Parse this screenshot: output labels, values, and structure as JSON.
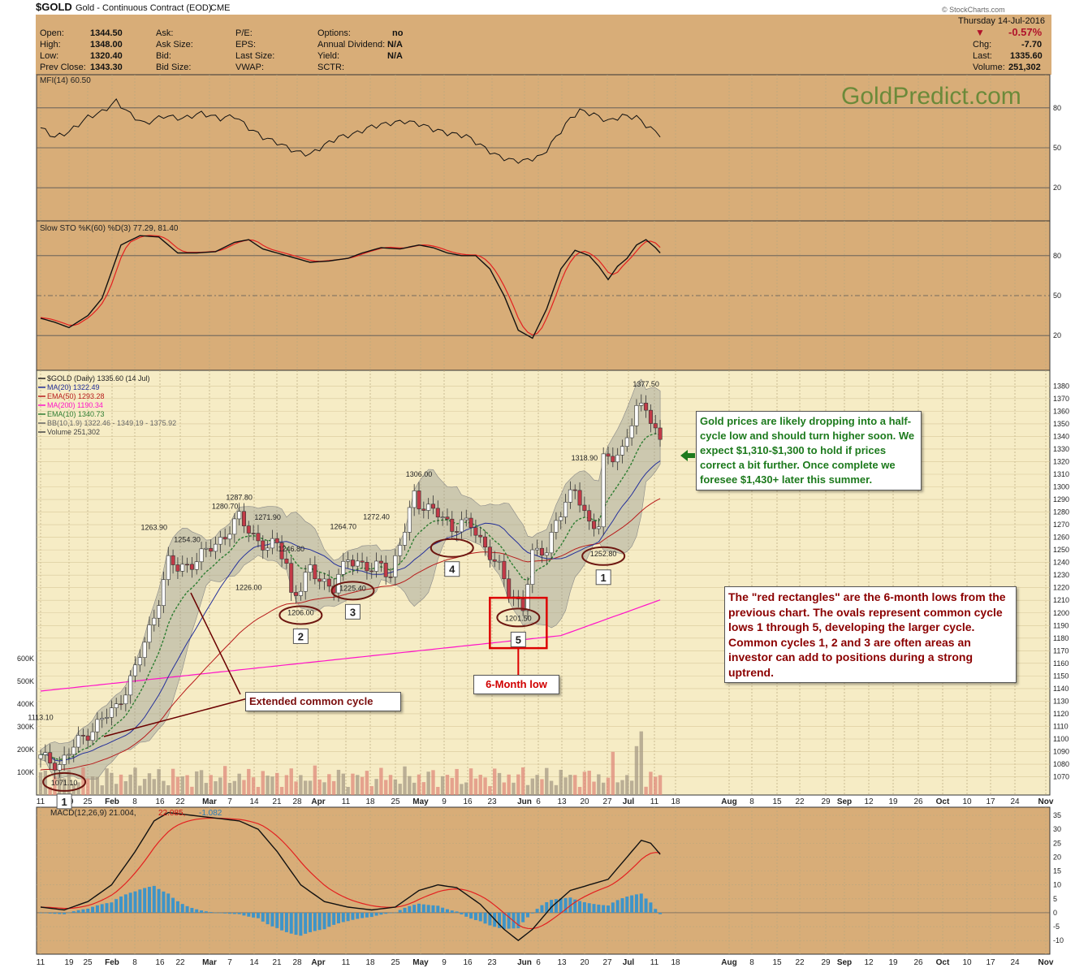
{
  "header": {
    "symbol": "$GOLD",
    "name": "Gold - Continuous Contract (EOD)",
    "exchange": "CME",
    "date": "Thursday  14-Jul-2016",
    "pct_change": "-0.57%",
    "chg_label": "Chg:",
    "chg": "-7.70",
    "last_label": "Last:",
    "last": "1335.60",
    "volume_label": "Volume:",
    "volume": "251,302",
    "stats": [
      {
        "label": "Open:",
        "value": "1344.50"
      },
      {
        "label": "High:",
        "value": "1348.00"
      },
      {
        "label": "Low:",
        "value": "1320.40"
      },
      {
        "label": "Prev Close:",
        "value": "1343.30"
      }
    ],
    "stats2": [
      "Ask:",
      "Ask Size:",
      "Bid:",
      "Bid Size:"
    ],
    "stats3": [
      "P/E:",
      "EPS:",
      "Last Size:",
      "VWAP:"
    ],
    "stats4": [
      {
        "label": "Options:",
        "value": "no"
      },
      {
        "label": "Annual Dividend:",
        "value": "N/A"
      },
      {
        "label": "Yield:",
        "value": "N/A"
      },
      {
        "label": "SCTR:",
        "value": ""
      }
    ],
    "credit": "© StockCharts.com"
  },
  "watermark": "GoldPredict.com",
  "colors": {
    "panel_bg": "#f6ecc5",
    "outer_bg": "#d8ad78",
    "price_up": "#ffffff",
    "price_down": "#c23a47",
    "ma20": "#24309a",
    "ema50": "#b71c1c",
    "ma200": "#ff14c8",
    "ema10": "#2e7d32",
    "bb_fill": "#9a9e94",
    "vol_up": "#a69a84",
    "vol_down": "#df8a7a",
    "macd_hist": "#3e94c8",
    "annotation_red": "#dd0000",
    "oval": "#6d1610",
    "green_text": "#1d7a1d"
  },
  "chart_data": {
    "type": "candlestick",
    "x_tick_labels": [
      "11",
      "19",
      "25",
      "Feb",
      "8",
      "16",
      "22",
      "Mar",
      "7",
      "14",
      "21",
      "28",
      "Apr",
      "11",
      "18",
      "25",
      "May",
      "9",
      "16",
      "23",
      "Jun",
      "6",
      "13",
      "20",
      "27",
      "Jul",
      "11",
      "18",
      "Aug",
      "8",
      "15",
      "22",
      "29",
      "Sep",
      "12",
      "19",
      "26",
      "Oct",
      "10",
      "17",
      "24",
      "Nov"
    ],
    "price_axis": [
      1070,
      1080,
      1090,
      1100,
      1110,
      1120,
      1130,
      1140,
      1150,
      1160,
      1170,
      1180,
      1190,
      1200,
      1210,
      1220,
      1230,
      1240,
      1250,
      1260,
      1270,
      1280,
      1290,
      1300,
      1310,
      1320,
      1330,
      1340,
      1350,
      1360,
      1370,
      1380
    ],
    "volume_axis": [
      "100K",
      "200K",
      "300K",
      "400K",
      "500K",
      "600K"
    ],
    "price_anchors": [
      [
        0,
        1085
      ],
      [
        4,
        1080
      ],
      [
        8,
        1098
      ],
      [
        12,
        1112
      ],
      [
        16,
        1125
      ],
      [
        20,
        1155
      ],
      [
        24,
        1198
      ],
      [
        27,
        1240
      ],
      [
        29,
        1235
      ],
      [
        32,
        1240
      ],
      [
        35,
        1248
      ],
      [
        39,
        1262
      ],
      [
        42,
        1275
      ],
      [
        45,
        1262
      ],
      [
        48,
        1250
      ],
      [
        50,
        1255
      ],
      [
        52,
        1240
      ],
      [
        53,
        1215
      ],
      [
        55,
        1218
      ],
      [
        57,
        1235
      ],
      [
        60,
        1225
      ],
      [
        62,
        1218
      ],
      [
        65,
        1245
      ],
      [
        68,
        1238
      ],
      [
        70,
        1232
      ],
      [
        72,
        1240
      ],
      [
        74,
        1230
      ],
      [
        77,
        1265
      ],
      [
        79,
        1295
      ],
      [
        80,
        1288
      ],
      [
        83,
        1280
      ],
      [
        85,
        1275
      ],
      [
        87,
        1268
      ],
      [
        89,
        1272
      ],
      [
        91,
        1268
      ],
      [
        93,
        1258
      ],
      [
        95,
        1248
      ],
      [
        97,
        1235
      ],
      [
        99,
        1215
      ],
      [
        101,
        1210
      ],
      [
        102,
        1206
      ],
      [
        104,
        1245
      ],
      [
        107,
        1250
      ],
      [
        109,
        1275
      ],
      [
        111,
        1285
      ],
      [
        113,
        1298
      ],
      [
        114,
        1290
      ],
      [
        116,
        1272
      ],
      [
        118,
        1268
      ],
      [
        119,
        1320
      ],
      [
        121,
        1325
      ],
      [
        123,
        1330
      ],
      [
        124,
        1340
      ],
      [
        126,
        1360
      ],
      [
        128,
        1365
      ],
      [
        130,
        1345
      ],
      [
        131,
        1336
      ]
    ],
    "price_labels": [
      {
        "i": 0,
        "label": "1113.10"
      },
      {
        "i": 5,
        "label": "1071.10"
      },
      {
        "i": 24,
        "label": "1263.90"
      },
      {
        "i": 31,
        "label": "1254.30"
      },
      {
        "i": 39,
        "label": "1280.70"
      },
      {
        "i": 42,
        "label": "1287.80"
      },
      {
        "i": 44,
        "label": "1226.00"
      },
      {
        "i": 48,
        "label": "1271.90"
      },
      {
        "i": 53,
        "label": "1246.80"
      },
      {
        "i": 55,
        "label": "1206.00"
      },
      {
        "i": 64,
        "label": "1264.70"
      },
      {
        "i": 66,
        "label": "1225.40"
      },
      {
        "i": 71,
        "label": "1272.40"
      },
      {
        "i": 80,
        "label": "1306.00"
      },
      {
        "i": 101,
        "label": "1201.50"
      },
      {
        "i": 115,
        "label": "1318.90"
      },
      {
        "i": 119,
        "label": "1252.80"
      },
      {
        "i": 128,
        "label": "1377.50"
      }
    ],
    "legend": [
      {
        "label": "$GOLD (Daily) 1335.60 (14 Jul)",
        "color": "#222222"
      },
      {
        "label": "MA(20) 1322.49",
        "color": "#24309a"
      },
      {
        "label": "EMA(50) 1293.28",
        "color": "#b71c1c"
      },
      {
        "label": "MA(200) 1190.34",
        "color": "#ff14c8"
      },
      {
        "label": "EMA(10) 1340.73",
        "color": "#2e7d32"
      },
      {
        "label": "BB(10,1.9) 1322.46 - 1349.19 - 1375.92",
        "color": "#666666"
      },
      {
        "label": "Volume 251,302",
        "color": "#444444"
      }
    ],
    "cycle_labels": [
      "1",
      "2",
      "3",
      "4",
      "5",
      "1"
    ],
    "mfi": {
      "label": "MFI(14) 60.50",
      "ticks": [
        20,
        50,
        80
      ]
    },
    "sto": {
      "label": "Slow STO %K(60) %D(3) 77.29, 81.40",
      "ticks": [
        20,
        50,
        80
      ]
    },
    "macd": {
      "label_left": "MACD(12,26,9) 21.004,",
      "label_signal": "22.085,",
      "label_hist": "-1.082",
      "ticks": [
        35,
        30,
        25,
        20,
        15,
        10,
        5,
        0,
        -5,
        -10
      ]
    }
  },
  "annotations": {
    "right_text": "Gold prices are likely dropping into a half-cycle low and should turn higher soon. We expect $1,310-$1,300 to hold if prices correct a bit further. Once complete we foresee $1,430+ later this summer.",
    "red_rect_text": "The \"red rectangles\" are the 6-month lows from the previous chart. The ovals represent common cycle lows 1 through 5, developing the larger cycle. Common cycles 1, 2 and 3 are often areas an investor can add to positions during a strong uptrend.",
    "extended": "Extended common cycle",
    "six_month": "6-Month low"
  }
}
